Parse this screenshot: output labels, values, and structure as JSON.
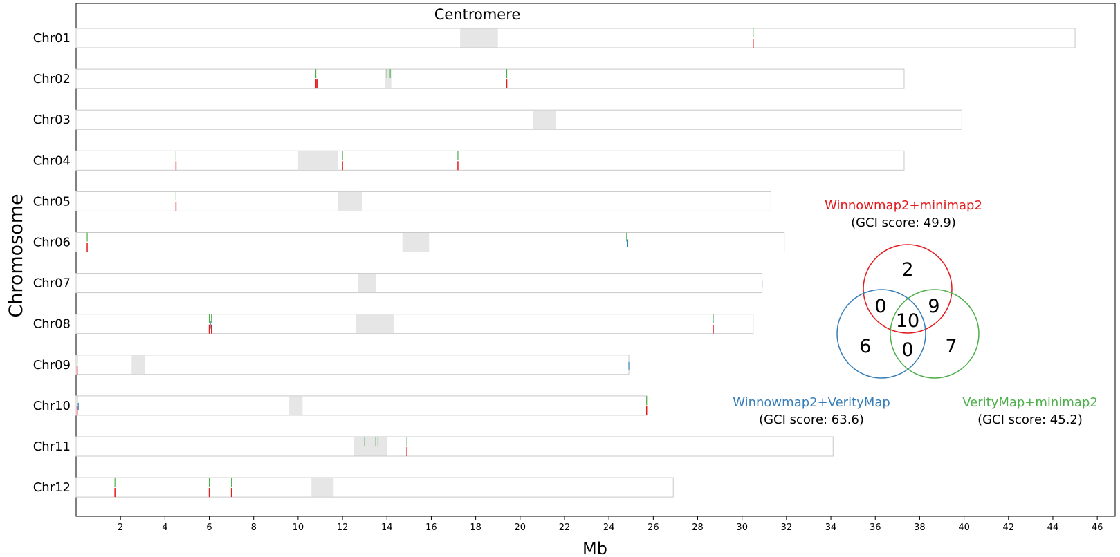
{
  "chart_data": {
    "type": "ideogram",
    "xlabel": "Mb",
    "ylabel": "Chromosome",
    "xlim": [
      0,
      46.8
    ],
    "x_ticks": [
      2,
      4,
      6,
      8,
      10,
      12,
      14,
      16,
      18,
      20,
      22,
      24,
      26,
      28,
      30,
      32,
      34,
      36,
      38,
      40,
      42,
      44,
      46
    ],
    "grid": false,
    "centromere_label": "Centromere",
    "colors": {
      "red": "#e41a1c",
      "blue": "#377eb8",
      "green": "#4daf4a",
      "centromere": "#e6e6e6",
      "chrom_outline": "#c8c8c8"
    },
    "chromosomes": [
      {
        "name": "Chr01",
        "length": 45.0,
        "centromere": [
          17.3,
          19.0
        ],
        "marks": {
          "green": [
            30.5
          ],
          "red": [
            30.5
          ],
          "blue": []
        }
      },
      {
        "name": "Chr02",
        "length": 37.3,
        "centromere": [
          13.9,
          14.2
        ],
        "marks": {
          "green": [
            10.8,
            14.0,
            14.15,
            19.4
          ],
          "red": [
            10.8,
            10.85,
            19.4
          ],
          "blue": []
        }
      },
      {
        "name": "Chr03",
        "length": 39.9,
        "centromere": [
          20.6,
          21.6
        ],
        "marks": {
          "green": [],
          "red": [],
          "blue": []
        }
      },
      {
        "name": "Chr04",
        "length": 37.3,
        "centromere": [
          10.0,
          11.8
        ],
        "marks": {
          "green": [
            4.5,
            12.0,
            17.2
          ],
          "red": [
            4.5,
            12.0,
            17.2
          ],
          "blue": []
        }
      },
      {
        "name": "Chr05",
        "length": 31.3,
        "centromere": [
          11.8,
          12.9
        ],
        "marks": {
          "green": [
            4.5
          ],
          "red": [
            4.5
          ],
          "blue": []
        }
      },
      {
        "name": "Chr06",
        "length": 31.9,
        "centromere": [
          14.7,
          15.9
        ],
        "marks": {
          "green": [
            0.5,
            24.8
          ],
          "red": [
            0.5
          ],
          "blue": [
            24.85
          ]
        }
      },
      {
        "name": "Chr07",
        "length": 30.9,
        "centromere": [
          12.7,
          13.5
        ],
        "marks": {
          "green": [],
          "red": [],
          "blue": [
            30.9
          ]
        }
      },
      {
        "name": "Chr08",
        "length": 30.5,
        "centromere": [
          12.6,
          14.3
        ],
        "marks": {
          "green": [
            6.0,
            6.1,
            28.7
          ],
          "red": [
            6.0,
            6.1,
            28.7
          ],
          "blue": [
            6.05
          ]
        }
      },
      {
        "name": "Chr09",
        "length": 24.9,
        "centromere": [
          2.5,
          3.1
        ],
        "marks": {
          "green": [
            0.05
          ],
          "red": [
            0.05
          ],
          "blue": [
            24.9
          ]
        }
      },
      {
        "name": "Chr10",
        "length": 25.7,
        "centromere": [
          9.6,
          10.2
        ],
        "marks": {
          "green": [
            0.05,
            25.7
          ],
          "red": [
            0.05,
            25.7
          ],
          "blue": [
            0.1
          ]
        }
      },
      {
        "name": "Chr11",
        "length": 34.1,
        "centromere": [
          12.5,
          14.0
        ],
        "marks": {
          "green": [
            13.0,
            13.5,
            13.6,
            14.9
          ],
          "red": [
            14.9
          ],
          "blue": []
        }
      },
      {
        "name": "Chr12",
        "length": 26.9,
        "centromere": [
          10.6,
          11.6
        ],
        "marks": {
          "green": [
            1.75,
            6.0,
            7.0
          ],
          "red": [
            1.75,
            6.0,
            7.0
          ],
          "blue": []
        }
      }
    ],
    "venn": {
      "sets": [
        {
          "name": "Winnowmap2+minimap2",
          "score_text": "(GCI score: 49.9)",
          "color": "#e41a1c"
        },
        {
          "name": "Winnowmap2+VerityMap",
          "score_text": "(GCI score: 63.6)",
          "color": "#377eb8"
        },
        {
          "name": "VerityMap+minimap2",
          "score_text": "(GCI score: 45.2)",
          "color": "#4daf4a"
        }
      ],
      "regions": [
        {
          "id": "red-only",
          "value": "2"
        },
        {
          "id": "red-blue",
          "value": "0"
        },
        {
          "id": "red-green",
          "value": "9"
        },
        {
          "id": "all-three",
          "value": "10"
        },
        {
          "id": "blue-only",
          "value": "6"
        },
        {
          "id": "blue-green",
          "value": "0"
        },
        {
          "id": "green-only",
          "value": "7"
        }
      ]
    }
  }
}
